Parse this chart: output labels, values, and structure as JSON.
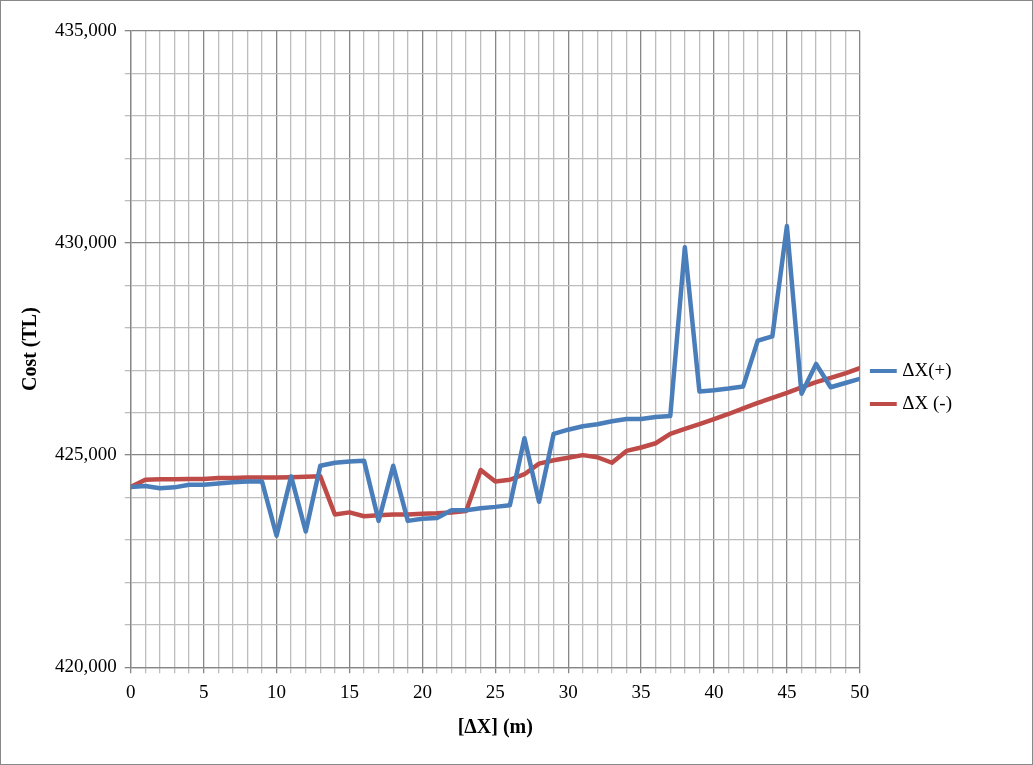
{
  "chart_data": {
    "type": "line",
    "xlabel": "[ΔX] (m)",
    "ylabel": "Cost (TL)",
    "legend": "right",
    "grid": true,
    "marker": "none",
    "line_style": "solid",
    "x": [
      0,
      1,
      2,
      3,
      4,
      5,
      6,
      7,
      8,
      9,
      10,
      11,
      12,
      13,
      14,
      15,
      16,
      17,
      18,
      19,
      20,
      21,
      22,
      23,
      24,
      25,
      26,
      27,
      28,
      29,
      30,
      31,
      32,
      33,
      34,
      35,
      36,
      37,
      38,
      39,
      40,
      41,
      42,
      43,
      44,
      45,
      46,
      47,
      48,
      49,
      50
    ],
    "xlim": [
      0,
      50
    ],
    "xticks": [
      0,
      {
        "value": 1,
        "label": null
      },
      {
        "value": 2,
        "label": null
      },
      {
        "value": 3,
        "label": null
      },
      {
        "value": 4,
        "label": null
      },
      5,
      {
        "value": 6,
        "label": null
      },
      {
        "value": 7,
        "label": null
      },
      {
        "value": 8,
        "label": null
      },
      {
        "value": 9,
        "label": null
      },
      10,
      {
        "value": 11,
        "label": null
      },
      {
        "value": 12,
        "label": null
      },
      {
        "value": 13,
        "label": null
      },
      {
        "value": 14,
        "label": null
      },
      15,
      {
        "value": 16,
        "label": null
      },
      {
        "value": 17,
        "label": null
      },
      {
        "value": 18,
        "label": null
      },
      {
        "value": 19,
        "label": null
      },
      20,
      {
        "value": 21,
        "label": null
      },
      {
        "value": 22,
        "label": null
      },
      {
        "value": 23,
        "label": null
      },
      {
        "value": 24,
        "label": null
      },
      25,
      {
        "value": 26,
        "label": null
      },
      {
        "value": 27,
        "label": null
      },
      {
        "value": 28,
        "label": null
      },
      {
        "value": 29,
        "label": null
      },
      30,
      {
        "value": 31,
        "label": null
      },
      {
        "value": 32,
        "label": null
      },
      {
        "value": 33,
        "label": null
      },
      {
        "value": 34,
        "label": null
      },
      35,
      {
        "value": 36,
        "label": null
      },
      {
        "value": 37,
        "label": null
      },
      {
        "value": 38,
        "label": null
      },
      {
        "value": 39,
        "label": null
      },
      40,
      {
        "value": 41,
        "label": null
      },
      {
        "value": 42,
        "label": null
      },
      {
        "value": 43,
        "label": null
      },
      {
        "value": 44,
        "label": null
      },
      45,
      {
        "value": 46,
        "label": null
      },
      {
        "value": 47,
        "label": null
      },
      {
        "value": 48,
        "label": null
      },
      {
        "value": 49,
        "label": null
      },
      50
    ],
    "ylim": [
      420000,
      435000
    ],
    "yticks": [
      {
        "value": 420000,
        "label": "420,000"
      },
      {
        "value": 421000,
        "label": null
      },
      {
        "value": 422000,
        "label": null
      },
      {
        "value": 423000,
        "label": null
      },
      {
        "value": 424000,
        "label": null
      },
      {
        "value": 425000,
        "label": "425,000"
      },
      {
        "value": 426000,
        "label": null
      },
      {
        "value": 427000,
        "label": null
      },
      {
        "value": 428000,
        "label": null
      },
      {
        "value": 429000,
        "label": null
      },
      {
        "value": 430000,
        "label": "430,000"
      },
      {
        "value": 431000,
        "label": null
      },
      {
        "value": 432000,
        "label": null
      },
      {
        "value": 433000,
        "label": null
      },
      {
        "value": 434000,
        "label": null
      },
      {
        "value": 435000,
        "label": "435,000"
      }
    ],
    "series": [
      {
        "name": "ΔX(+)",
        "color": "#4a7ebb",
        "values": [
          424250,
          424270,
          424220,
          424240,
          424300,
          424300,
          424330,
          424360,
          424380,
          424380,
          423100,
          424500,
          423200,
          424750,
          424820,
          424850,
          424870,
          423450,
          424750,
          423450,
          423500,
          423520,
          423700,
          423700,
          423750,
          423780,
          423820,
          425400,
          423900,
          425500,
          425600,
          425680,
          425730,
          425800,
          425850,
          425850,
          425900,
          425920,
          429900,
          426500,
          426530,
          426570,
          426620,
          427700,
          427800,
          430400,
          426450,
          427150,
          426600,
          426700,
          426800
        ]
      },
      {
        "name": "ΔX (-)",
        "color": "#be4b48",
        "values": [
          424250,
          424420,
          424430,
          424430,
          424440,
          424440,
          424460,
          424460,
          424470,
          424470,
          424470,
          424480,
          424490,
          424500,
          423600,
          423650,
          423560,
          423580,
          423600,
          423600,
          423620,
          423630,
          423650,
          423680,
          424650,
          424380,
          424420,
          424550,
          424800,
          424880,
          424940,
          425000,
          424950,
          424820,
          425100,
          425180,
          425280,
          425500,
          425620,
          425730,
          425850,
          425970,
          426100,
          426230,
          426350,
          426470,
          426600,
          426720,
          426820,
          426930,
          427050
        ]
      }
    ]
  }
}
